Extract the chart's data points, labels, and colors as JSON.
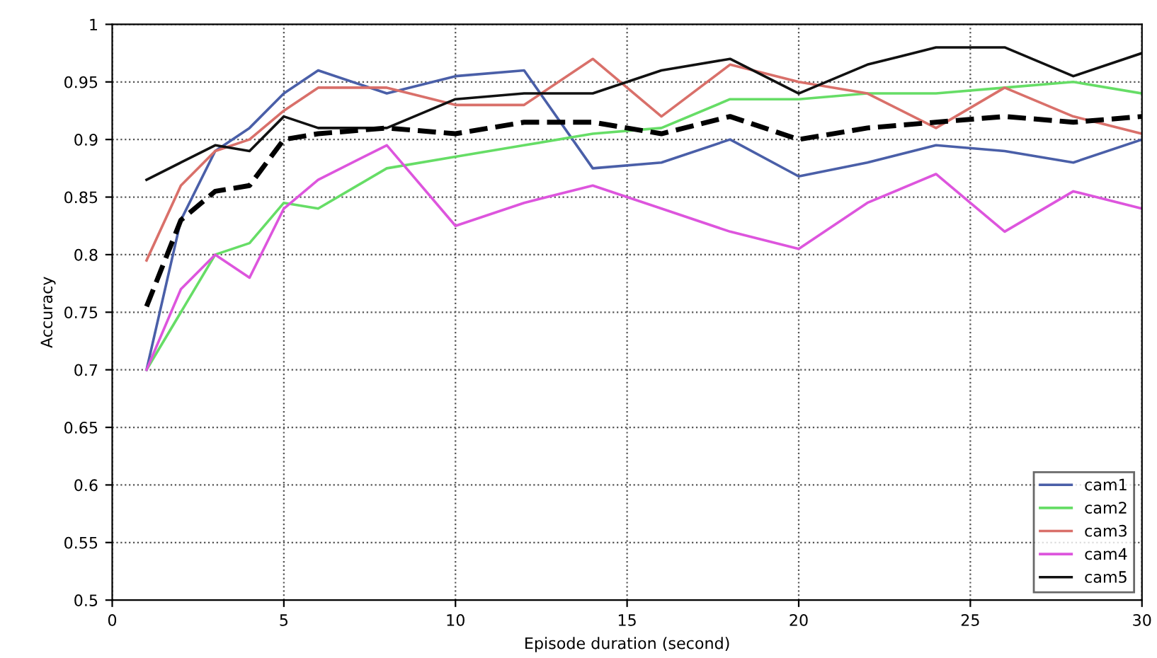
{
  "chart_data": {
    "type": "line",
    "xlabel": "Episode duration (second)",
    "ylabel": "Accuracy",
    "x": [
      1,
      2,
      3,
      4,
      5,
      6,
      8,
      10,
      12,
      14,
      16,
      18,
      20,
      22,
      24,
      26,
      28,
      30
    ],
    "series": [
      {
        "name": "cam1",
        "color": "#4a5fa8",
        "values": [
          0.7,
          0.83,
          0.89,
          0.91,
          0.94,
          0.96,
          0.94,
          0.955,
          0.96,
          0.875,
          0.88,
          0.9,
          0.868,
          0.88,
          0.895,
          0.89,
          0.88,
          0.9
        ]
      },
      {
        "name": "cam2",
        "color": "#66dd66",
        "values": [
          0.7,
          0.75,
          0.8,
          0.81,
          0.845,
          0.84,
          0.875,
          0.885,
          0.895,
          0.905,
          0.91,
          0.935,
          0.935,
          0.94,
          0.94,
          0.945,
          0.95,
          0.94
        ]
      },
      {
        "name": "cam3",
        "color": "#d9706a",
        "values": [
          0.795,
          0.86,
          0.89,
          0.9,
          0.925,
          0.945,
          0.945,
          0.93,
          0.93,
          0.97,
          0.92,
          0.965,
          0.95,
          0.94,
          0.91,
          0.945,
          0.92,
          0.905
        ]
      },
      {
        "name": "cam4",
        "color": "#dd55dd",
        "values": [
          0.7,
          0.77,
          0.8,
          0.78,
          0.84,
          0.865,
          0.895,
          0.825,
          0.845,
          0.86,
          0.84,
          0.82,
          0.805,
          0.845,
          0.87,
          0.82,
          0.855,
          0.84
        ]
      },
      {
        "name": "cam5",
        "color": "#111111",
        "values": [
          0.865,
          0.88,
          0.895,
          0.89,
          0.92,
          0.91,
          0.91,
          0.935,
          0.94,
          0.94,
          0.96,
          0.97,
          0.94,
          0.965,
          0.98,
          0.98,
          0.955,
          0.975
        ]
      },
      {
        "color": "#000000",
        "line_style": "dashed",
        "values": [
          0.755,
          0.83,
          0.855,
          0.86,
          0.9,
          0.905,
          0.91,
          0.905,
          0.915,
          0.915,
          0.905,
          0.92,
          0.9,
          0.91,
          0.915,
          0.92,
          0.915,
          0.92
        ]
      }
    ],
    "xlim": [
      0,
      30
    ],
    "xticks": [
      0,
      5,
      10,
      15,
      20,
      25,
      30
    ],
    "ylim": [
      0.5,
      1
    ],
    "yticks": [
      0.5,
      0.55,
      0.6,
      {
        "value": 0.65,
        "label": "0.65"
      },
      0.7,
      0.75,
      0.8,
      0.85,
      0.9,
      0.95,
      1
    ],
    "grid": true,
    "legend": "bottom right",
    "line_style": "solid",
    "marker": "none"
  }
}
